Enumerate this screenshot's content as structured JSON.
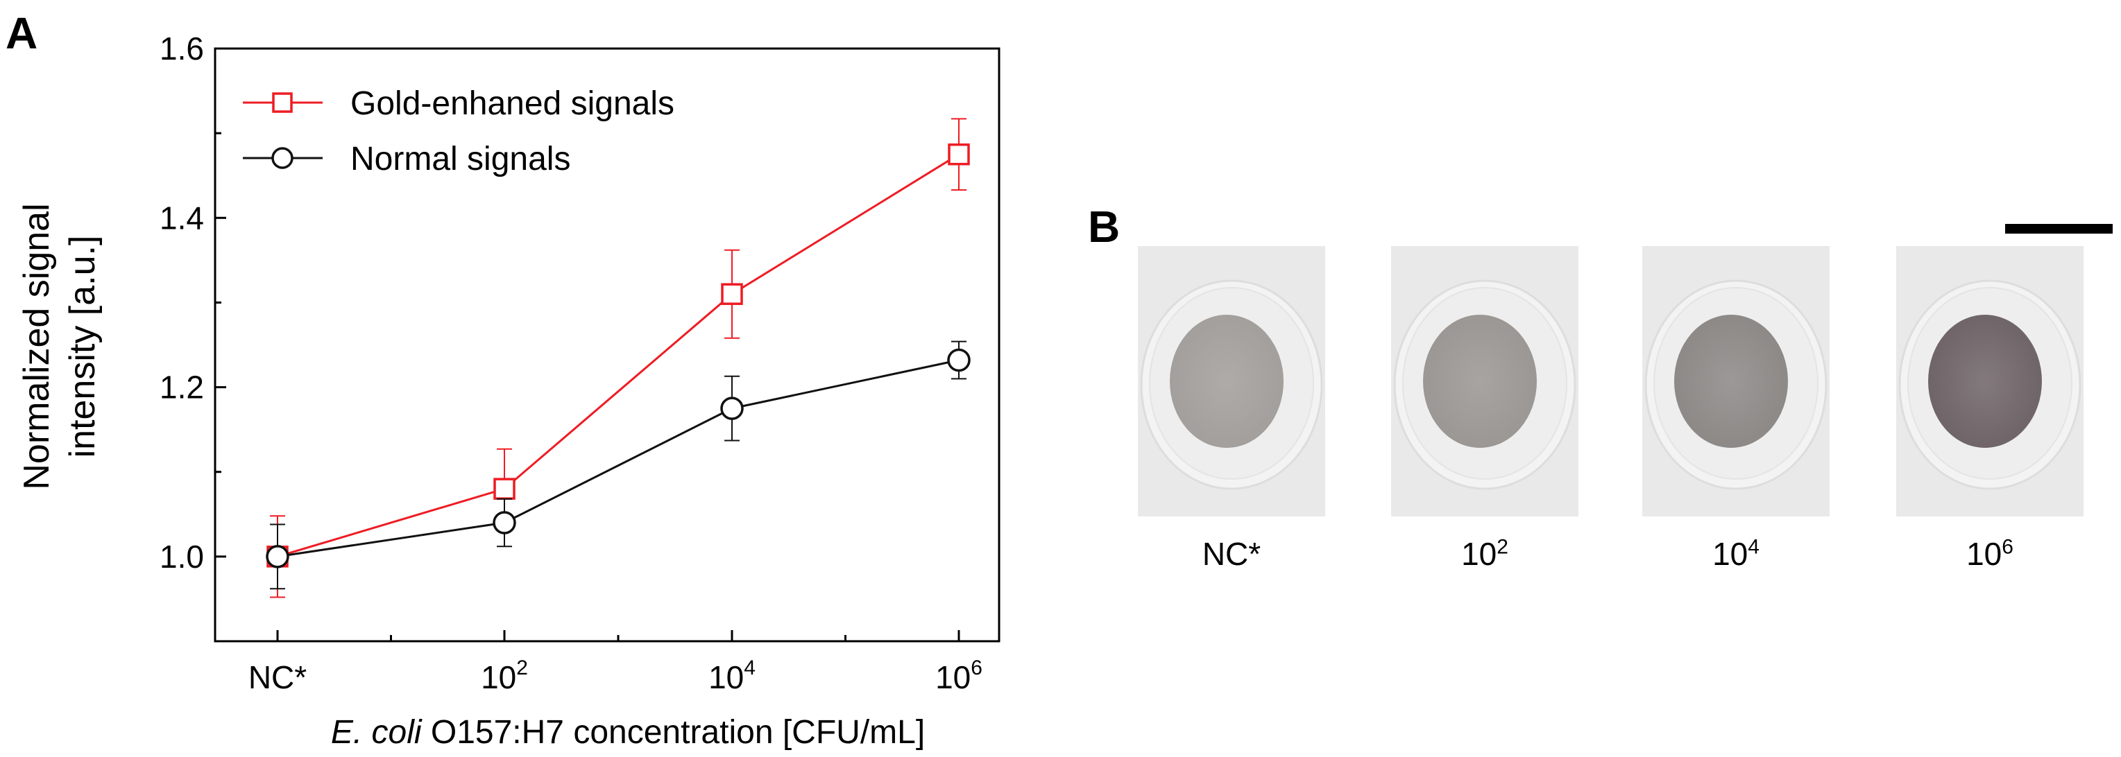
{
  "panel_a_label": "A",
  "panel_b_label": "B",
  "chart_data": {
    "type": "line",
    "title": "",
    "xlabel_italic": "E. coli",
    "xlabel_rest": " O157:H7 concentration [CFU/mL]",
    "ylabel_line1": "Normalized signal",
    "ylabel_line2": "intensity [a.u.]",
    "categories": [
      "NC*",
      "10^2",
      "10^4",
      "10^6"
    ],
    "category_labels": [
      {
        "base": "NC*",
        "exp": ""
      },
      {
        "base": "10",
        "exp": "2"
      },
      {
        "base": "10",
        "exp": "4"
      },
      {
        "base": "10",
        "exp": "6"
      }
    ],
    "ylim": [
      0.9,
      1.6
    ],
    "yticks": [
      1.0,
      1.2,
      1.4,
      1.6
    ],
    "ytick_labels": [
      "1.0",
      "1.2",
      "1.4",
      "1.6"
    ],
    "legend_position": "top-left",
    "series": [
      {
        "name": "Gold-enhaned signals",
        "color": "#ee1c24",
        "marker": "square",
        "values": [
          1.0,
          1.08,
          1.31,
          1.475
        ],
        "errors": [
          0.048,
          0.047,
          0.052,
          0.042
        ]
      },
      {
        "name": "Normal signals",
        "color": "#111111",
        "marker": "circle",
        "values": [
          1.0,
          1.04,
          1.175,
          1.232
        ],
        "errors": [
          0.038,
          0.028,
          0.038,
          0.022
        ]
      }
    ]
  },
  "panel_b": {
    "wells": [
      {
        "base": "NC*",
        "exp": "",
        "spot_color": "#a39f9c"
      },
      {
        "base": "10",
        "exp": "2",
        "spot_color": "#9b9794"
      },
      {
        "base": "10",
        "exp": "4",
        "spot_color": "#8d8987"
      },
      {
        "base": "10",
        "exp": "6",
        "spot_color": "#6f6568"
      }
    ]
  }
}
